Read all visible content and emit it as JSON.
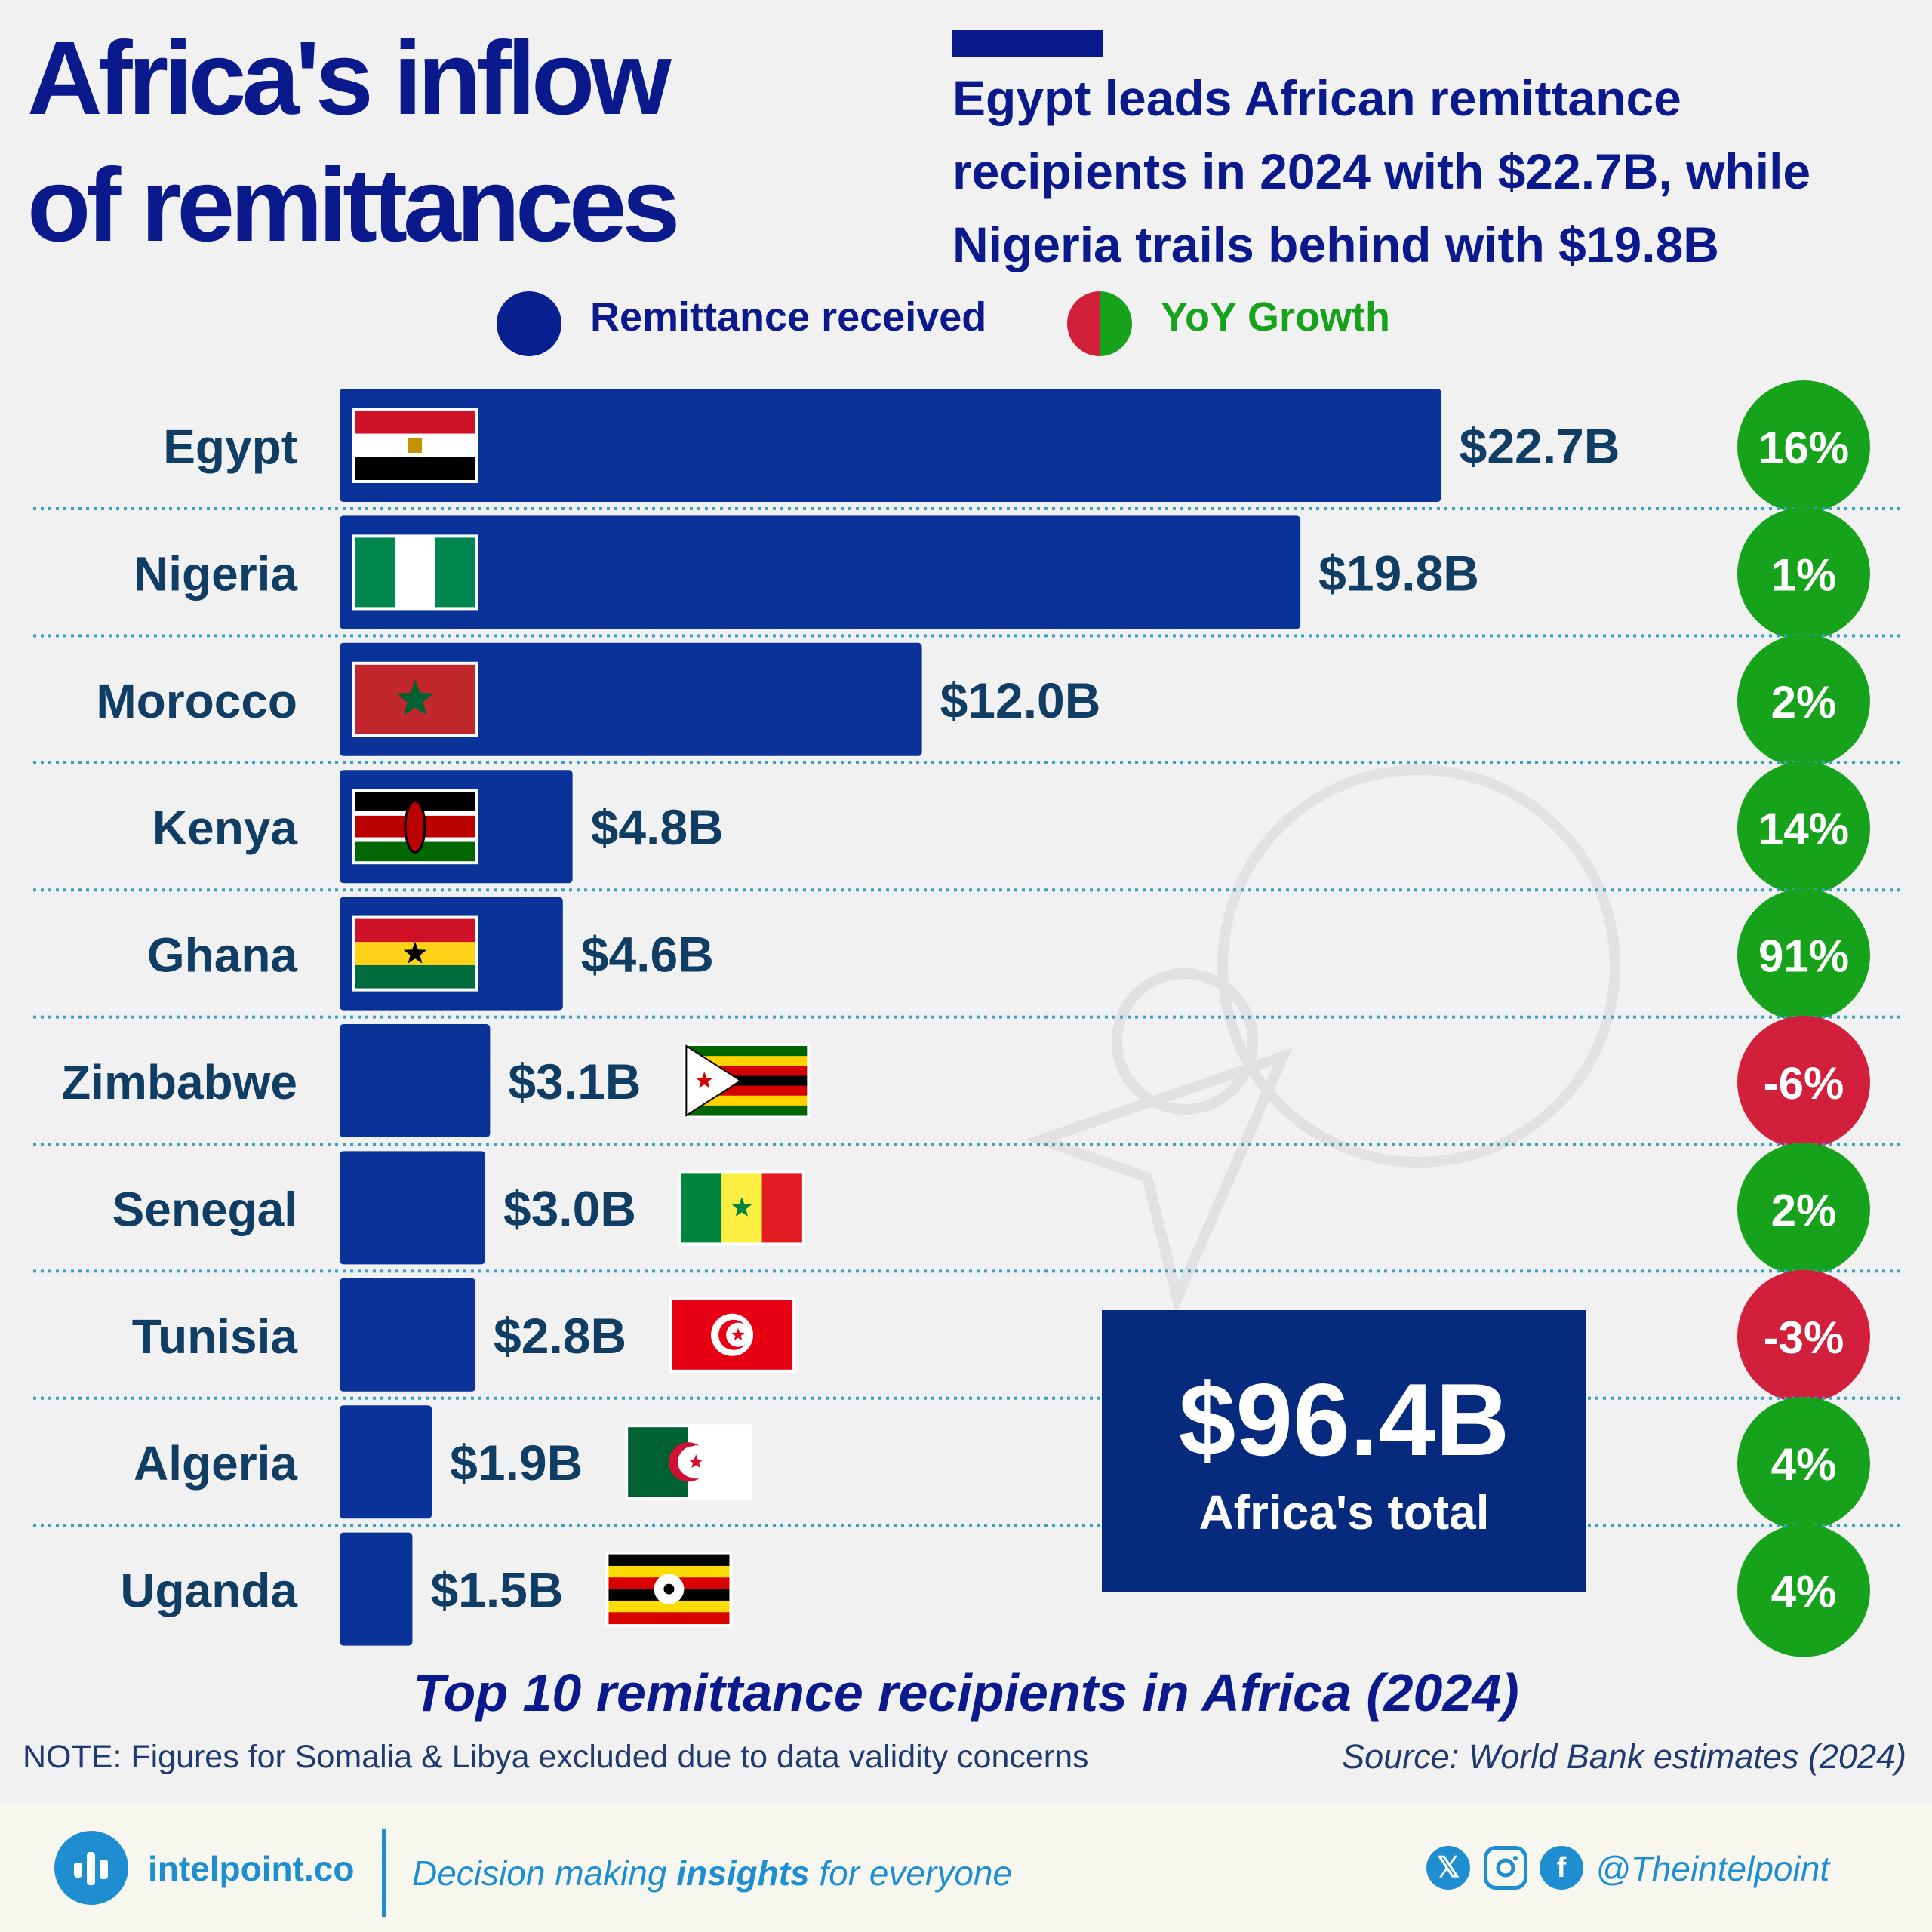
{
  "title_line1": "Africa's inflow",
  "title_line2": "of remittances",
  "headline": "Egypt leads African remittance recipients in 2024 with $22.7B, while Nigeria trails behind with $19.8B",
  "legend": {
    "remittance": "Remittance received",
    "growth": "YoY Growth"
  },
  "colors": {
    "bar": "#0a3399",
    "positive": "#17a21b",
    "negative": "#d21f3c",
    "country_text": "#0f3d63",
    "title": "#0a1a8c"
  },
  "chart_data": {
    "type": "bar",
    "orientation": "horizontal",
    "title": "Top 10 remittance recipients in Africa (2024)",
    "categories": [
      "Egypt",
      "Nigeria",
      "Morocco",
      "Kenya",
      "Ghana",
      "Zimbabwe",
      "Senegal",
      "Tunisia",
      "Algeria",
      "Uganda"
    ],
    "series": [
      {
        "name": "Remittance received",
        "values": [
          22.7,
          19.8,
          12.0,
          4.8,
          4.6,
          3.1,
          3.0,
          2.8,
          1.9,
          1.5
        ],
        "labels": [
          "$22.7B",
          "$19.8B",
          "$12.0B",
          "$4.8B",
          "$4.6B",
          "$3.1B",
          "$3.0B",
          "$2.8B",
          "$1.9B",
          "$1.5B"
        ]
      },
      {
        "name": "YoY Growth",
        "values": [
          16,
          1,
          2,
          14,
          91,
          -6,
          2,
          -3,
          4,
          4
        ],
        "labels": [
          "16%",
          "1%",
          "2%",
          "14%",
          "91%",
          "-6%",
          "2%",
          "-3%",
          "4%",
          "4%"
        ]
      }
    ],
    "flags": [
      "egypt",
      "nigeria",
      "morocco",
      "kenya",
      "ghana",
      "zimbabwe",
      "senegal",
      "tunisia",
      "algeria",
      "uganda"
    ]
  },
  "total": {
    "value": "$96.4B",
    "label": "Africa's total"
  },
  "note": "NOTE: Figures for Somalia & Libya excluded due to data validity concerns",
  "source": "Source: World Bank estimates (2024)",
  "footer": {
    "brand": "intelpoint.co",
    "tagline_pre": "Decision making ",
    "tagline_bold": "insights",
    "tagline_post": " for everyone",
    "handle": "@Theintelpoint",
    "icons": [
      "x-icon",
      "instagram-icon",
      "facebook-icon"
    ]
  }
}
